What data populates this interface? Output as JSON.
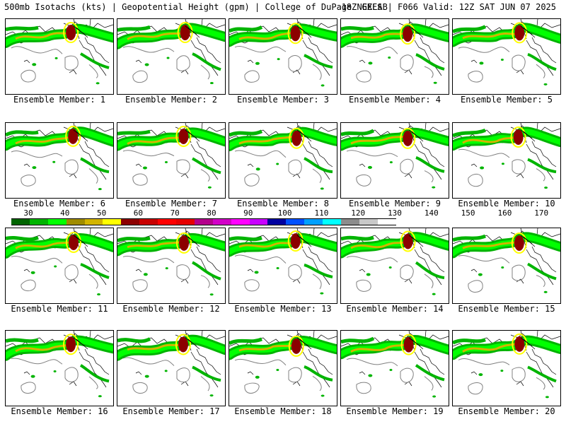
{
  "header": {
    "title_left": "500mb Isotachs (kts) | Geopotential Height (gpm) | College of DuPage NEXLAB",
    "title_right": "18Z GEFS | F066 Valid: 12Z SAT JUN 07 2025"
  },
  "members": [
    "Ensemble Member: 1",
    "Ensemble Member: 2",
    "Ensemble Member: 3",
    "Ensemble Member: 4",
    "Ensemble Member: 5",
    "Ensemble Member: 6",
    "Ensemble Member: 7",
    "Ensemble Member: 8",
    "Ensemble Member: 9",
    "Ensemble Member: 10",
    "Ensemble Member: 11",
    "Ensemble Member: 12",
    "Ensemble Member: 13",
    "Ensemble Member: 14",
    "Ensemble Member: 15",
    "Ensemble Member: 16",
    "Ensemble Member: 17",
    "Ensemble Member: 18",
    "Ensemble Member: 19",
    "Ensemble Member: 20"
  ],
  "colorbar": {
    "ticks": [
      "30",
      "40",
      "50",
      "60",
      "70",
      "80",
      "90",
      "100",
      "110",
      "120",
      "130",
      "140",
      "150",
      "160",
      "170"
    ],
    "colors": [
      "#006400",
      "#00b400",
      "#00ff00",
      "#a08c00",
      "#d2b400",
      "#ffff00",
      "#8c0000",
      "#c80000",
      "#ff0000",
      "#e60000",
      "#b4008c",
      "#d200c8",
      "#ff00ff",
      "#c800ff",
      "#0000a0",
      "#0050ff",
      "#00a0ff",
      "#00ffff",
      "#8c8c8c",
      "#c8c8c8",
      "#ffffff"
    ]
  }
}
